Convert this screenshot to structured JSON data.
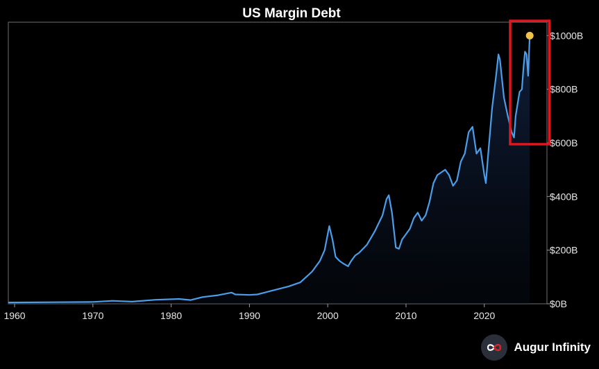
{
  "chart_data": {
    "type": "area",
    "title": "US Margin Debt",
    "xlabel": "",
    "ylabel": "",
    "xlim": [
      1959.2,
      2028.0
    ],
    "ylim": [
      0,
      1050
    ],
    "x_ticks": [
      1960,
      1970,
      1980,
      1990,
      2000,
      2010,
      2020
    ],
    "x_tick_labels": [
      "1960",
      "1970",
      "1980",
      "1990",
      "2000",
      "2010",
      "2020"
    ],
    "y_ticks": [
      0,
      200,
      400,
      600,
      800,
      1000
    ],
    "y_tick_labels": [
      "$0B",
      "$200B",
      "$400B",
      "$600B",
      "$800B",
      "$1000B"
    ],
    "grid": false,
    "legend": "none",
    "colors": {
      "line": "#4a9eea",
      "area": "#1e3a6e",
      "highlight_box": "#e0161f",
      "marker": "#f0c24a",
      "axis": "#9aa0a6"
    },
    "series": [
      {
        "x": [
          1959,
          1965,
          1970,
          1972.5,
          1975,
          1978,
          1981,
          1982.5,
          1984,
          1986,
          1987.7,
          1988.2,
          1990,
          1991,
          1993,
          1995,
          1996.5,
          1998,
          1999,
          1999.6,
          2000.2,
          2000.6,
          2001,
          2001.5,
          2002,
          2002.6,
          2003,
          2003.5,
          2004,
          2005,
          2006,
          2007,
          2007.5,
          2007.8,
          2008.2,
          2008.7,
          2009.1,
          2009.5,
          2010,
          2010.5,
          2011,
          2011.5,
          2012,
          2012.5,
          2013,
          2013.5,
          2014,
          2014.5,
          2015,
          2015.5,
          2016,
          2016.5,
          2017,
          2017.5,
          2018,
          2018.5,
          2018.8,
          2019,
          2019.5,
          2020,
          2020.2,
          2020.5,
          2021,
          2021.5,
          2021.8,
          2022,
          2022.5,
          2023,
          2023.5,
          2023.8,
          2024,
          2024.5,
          2024.8,
          2025,
          2025.2,
          2025.4,
          2025.6,
          2025.8
        ],
        "y": [
          5,
          6,
          7,
          11,
          8,
          15,
          18,
          14,
          25,
          32,
          42,
          35,
          33,
          35,
          50,
          65,
          80,
          120,
          160,
          200,
          290,
          240,
          175,
          160,
          150,
          140,
          160,
          180,
          190,
          220,
          270,
          330,
          390,
          405,
          340,
          210,
          205,
          240,
          260,
          280,
          320,
          340,
          310,
          330,
          380,
          450,
          480,
          490,
          500,
          480,
          440,
          460,
          530,
          560,
          640,
          660,
          600,
          560,
          580,
          480,
          450,
          560,
          730,
          850,
          930,
          910,
          770,
          700,
          640,
          620,
          700,
          790,
          800,
          880,
          940,
          930,
          850,
          1000
        ]
      }
    ],
    "highlight": {
      "x_range": [
        2023.3,
        2028.3
      ],
      "y_range": [
        595,
        1055
      ]
    },
    "marker": {
      "x": 2025.8,
      "y": 1000
    }
  },
  "brand": {
    "name": "Augur Infinity",
    "logo_icon": "infinity-icon"
  }
}
